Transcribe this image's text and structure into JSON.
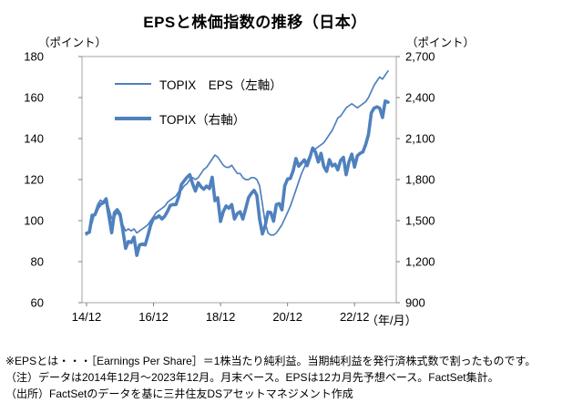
{
  "title": "EPSと株価指数の推移（日本）",
  "legend": {
    "eps_label": "TOPIX　EPS（左軸）",
    "topix_label": "TOPIX（右軸）"
  },
  "footnotes": {
    "line1": "※EPSとは・・・［Earnings Per Share］＝1株当たり純利益。当期純利益を発行済株式数で割ったものです。",
    "line2": "（注）データは2014年12月～2023年12月。月末ベース。EPSは12カ月先予想ベース。FactSet集計。",
    "line3": "（出所）FactSetのデータを基に三井住友DSアセットマネジメント作成"
  },
  "chart_data": {
    "type": "line",
    "title": "EPSと株価指数の推移（日本）",
    "line_color": "#4F81BD",
    "left_axis": {
      "unit": "（ポイント）",
      "min": 60,
      "max": 180,
      "ticks": [
        60,
        80,
        100,
        120,
        140,
        160,
        180
      ]
    },
    "right_axis": {
      "unit": "（ポイント）",
      "min": 900,
      "max": 2700,
      "ticks": [
        900,
        1200,
        1500,
        1800,
        2100,
        2400,
        2700
      ]
    },
    "x_axis": {
      "unit": "（年/月）",
      "start": "2014/12",
      "end": "2023/12",
      "months": 109,
      "tick_labels": [
        "14/12",
        "16/12",
        "18/12",
        "20/12",
        "22/12"
      ],
      "tick_month_indices": [
        0,
        24,
        48,
        72,
        96
      ]
    },
    "series": [
      {
        "name": "TOPIX（右軸）",
        "axis": "right",
        "width": "thick",
        "values": [
          1408,
          1415,
          1540,
          1543,
          1593,
          1620,
          1630,
          1660,
          1537,
          1411,
          1558,
          1580,
          1547,
          1432,
          1297,
          1347,
          1340,
          1379,
          1246,
          1323,
          1329,
          1323,
          1393,
          1469,
          1518,
          1521,
          1535,
          1512,
          1531,
          1568,
          1611,
          1618,
          1617,
          1674,
          1765,
          1792,
          1817,
          1836,
          1768,
          1716,
          1777,
          1747,
          1730,
          1753,
          1735,
          1817,
          1646,
          1667,
          1494,
          1567,
          1607,
          1591,
          1617,
          1512,
          1551,
          1565,
          1511,
          1587,
          1667,
          1699,
          1721,
          1684,
          1510,
          1403,
          1464,
          1563,
          1559,
          1496,
          1618,
          1625,
          1579,
          1755,
          1805,
          1808,
          1864,
          1954,
          1898,
          1922,
          1944,
          1901,
          1961,
          2031,
          2001,
          1929,
          1992,
          1896,
          1860,
          1946,
          1900,
          1913,
          1871,
          1940,
          1963,
          1836,
          1930,
          1986,
          1892,
          1975,
          1993,
          2003,
          2057,
          2130,
          2288,
          2323,
          2332,
          2323,
          2254,
          2375,
          2366
        ]
      },
      {
        "name": "TOPIX　EPS（左軸）",
        "axis": "left",
        "width": "thin",
        "values": [
          93,
          95,
          99,
          104,
          108,
          110,
          109,
          110,
          106,
          101,
          102,
          104,
          102,
          98,
          95,
          96,
          95,
          96,
          94,
          95,
          96,
          97,
          98,
          100,
          102,
          104,
          105,
          106,
          107,
          109,
          110,
          111,
          112,
          114,
          115,
          117,
          118,
          120,
          121,
          120,
          121,
          123,
          125,
          126,
          128,
          130,
          132,
          131,
          129,
          127,
          126,
          126,
          127,
          125,
          123,
          123,
          121,
          120,
          120,
          121,
          121,
          120,
          117,
          108,
          99,
          94,
          93,
          93,
          94,
          96,
          98,
          101,
          104,
          107,
          111,
          115,
          119,
          123,
          126,
          129,
          132,
          134,
          135,
          136,
          137,
          138,
          140,
          142,
          144,
          147,
          150,
          151,
          153,
          155,
          156,
          157,
          156,
          155,
          156,
          157,
          158,
          160,
          163,
          166,
          168,
          170,
          169,
          171,
          173
        ]
      }
    ]
  }
}
